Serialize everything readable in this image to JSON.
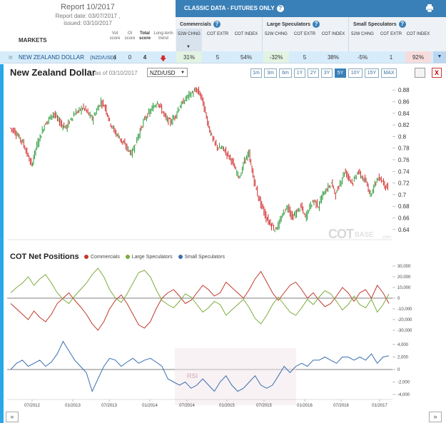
{
  "report": {
    "title": "Report 10/2017",
    "date": "Report date: 03/07/2017 ,",
    "issued": "issued: 03/10/2017",
    "markets_label": "MARKETS",
    "cols": {
      "vol": "Vol score",
      "oi": "OI score",
      "total": "Total score",
      "trend": "Long-term trend"
    }
  },
  "classic": {
    "title": "CLASSIC DATA - FUTURES ONLY",
    "groups": [
      "Commercials",
      "Large Speculators",
      "Small Speculators"
    ],
    "col_52w": "52W CHNG",
    "col_extr": "COT EXTR",
    "col_index": "COT INDEX"
  },
  "market_row": {
    "name": "NEW ZEALAND DOLLAR",
    "symbol": "(NZD/USD)",
    "vol": "4",
    "oi": "0",
    "total": "4",
    "comm_52w": "31%",
    "comm_extr": "5",
    "comm_index": "54%",
    "lspec_52w": "-32%",
    "lspec_extr": "5",
    "lspec_index": "38%",
    "sspec_52w": "-5%",
    "sspec_extr": "1",
    "sspec_index": "92%"
  },
  "chart": {
    "title": "New Zealand Dollar",
    "as_of": "as of 03/10/2017",
    "pair": "NZD/USD",
    "zoom": [
      "1m",
      "3m",
      "6m",
      "1Y",
      "2Y",
      "3Y",
      "5Y",
      "10Y",
      "15Y",
      "MAX"
    ],
    "zoom_active": "5Y",
    "close_label": "X",
    "cot_title": "COT Net Positions",
    "legend": [
      "Commercials",
      "Large Speculators",
      "Small Speculators"
    ],
    "nav_left": "«",
    "nav_right": "»",
    "watermark_cot": "COT",
    "watermark_base": "BASE",
    "watermark_com": ".com",
    "rsi_label": "RSI"
  },
  "colors": {
    "accent": "#3a80b8",
    "positive": "#2a9a3a",
    "negative": "#d02b2b",
    "commercials": "#c0392b",
    "large_spec": "#7dab3c",
    "small_spec": "#3a6fb0"
  },
  "chart_data": [
    {
      "type": "line",
      "series": [
        {
          "values": [
            0.815,
            0.81,
            0.8,
            0.79,
            0.77,
            0.75,
            0.78,
            0.8,
            0.82,
            0.83,
            0.84,
            0.83,
            0.82,
            0.815,
            0.83,
            0.84,
            0.845,
            0.85,
            0.84,
            0.83,
            0.845,
            0.86,
            0.85,
            0.825,
            0.81,
            0.8,
            0.79,
            0.78,
            0.77,
            0.79,
            0.81,
            0.83,
            0.84,
            0.85,
            0.86,
            0.845,
            0.83,
            0.825,
            0.835,
            0.85,
            0.86,
            0.87,
            0.875,
            0.88,
            0.87,
            0.84,
            0.81,
            0.79,
            0.78,
            0.78,
            0.77,
            0.76,
            0.74,
            0.73,
            0.76,
            0.77,
            0.73,
            0.7,
            0.68,
            0.66,
            0.65,
            0.64,
            0.65,
            0.67,
            0.68,
            0.66,
            0.67,
            0.68,
            0.66,
            0.68,
            0.69,
            0.68,
            0.7,
            0.71,
            0.72,
            0.7,
            0.72,
            0.74,
            0.73,
            0.72,
            0.74,
            0.73,
            0.72,
            0.7,
            0.72,
            0.73,
            0.72,
            0.71
          ]
        }
      ],
      "x_ticks": [
        "07/2012",
        "01/2013",
        "07/2013",
        "01/2014",
        "07/2014",
        "01/2015",
        "07/2015",
        "01/2016",
        "07/2016",
        "01/2017"
      ],
      "y_ticks": [
        "0.88",
        "0.86",
        "0.84",
        "0.82",
        "0.8",
        "0.78",
        "0.76",
        "0.74",
        "0.72",
        "0.7",
        "0.68",
        "0.66",
        "0.64"
      ],
      "ylim": [
        0.625,
        0.89
      ]
    },
    {
      "type": "line",
      "series": [
        {
          "name": "Commercials",
          "values": [
            -5000,
            -10000,
            -15000,
            -20000,
            -12000,
            -18000,
            -22000,
            -15000,
            -5000,
            0,
            5000,
            -2000,
            -8000,
            -15000,
            -24000,
            -30000,
            -22000,
            -10000,
            -2000,
            3000,
            -5000,
            -15000,
            -25000,
            -28000,
            -22000,
            -10000,
            0,
            5000,
            8000,
            2000,
            -5000,
            -2000,
            5000,
            12000,
            8000,
            2000,
            5000,
            15000,
            10000,
            5000,
            0,
            8000,
            18000,
            25000,
            15000,
            5000,
            -2000,
            5000,
            12000,
            15000,
            8000,
            0,
            5000,
            -2000,
            -8000,
            -5000,
            2000,
            10000,
            5000,
            -3000,
            5000,
            8000,
            0,
            12000,
            5000,
            -5000
          ]
        },
        {
          "name": "Large Speculators",
          "values": [
            5000,
            10000,
            14000,
            20000,
            12000,
            18000,
            22000,
            14000,
            5000,
            -1000,
            -5000,
            2000,
            8000,
            14000,
            22000,
            28000,
            20000,
            8000,
            0,
            -4000,
            4000,
            14000,
            24000,
            26000,
            20000,
            8000,
            -2000,
            -6000,
            -9000,
            -3000,
            4000,
            1000,
            -6000,
            -13000,
            -9000,
            -3000,
            -6000,
            -16000,
            -11000,
            -6000,
            -1000,
            -9000,
            -19000,
            -24000,
            -16000,
            -6000,
            1000,
            -6000,
            -13000,
            -16000,
            -9000,
            -1000,
            -6000,
            1000,
            7000,
            4000,
            -3000,
            -11000,
            -6000,
            2000,
            -6000,
            -9000,
            -1000,
            -13000,
            -6000,
            4000
          ]
        },
        {
          "name": "Small Speculators",
          "values": [
            0,
            1000,
            1500,
            500,
            1000,
            1500,
            500,
            1200,
            2500,
            4500,
            3000,
            1500,
            500,
            -500,
            -3500,
            -1500,
            500,
            1800,
            1500,
            500,
            1200,
            1800,
            1000,
            1500,
            1800,
            1200,
            500,
            -1500,
            -2000,
            -2500,
            -2000,
            -3000,
            -2500,
            -1500,
            -2500,
            -3500,
            -2000,
            -1000,
            -2500,
            -3500,
            -3000,
            -2000,
            -1000,
            -2500,
            -3000,
            -2500,
            -1000,
            500,
            -500,
            500,
            1000,
            500,
            1500,
            1500,
            2000,
            1500,
            1000,
            2000,
            2000,
            1500,
            2000,
            1500,
            2500,
            1000,
            2000,
            2200
          ]
        }
      ],
      "y_ticks": [
        "30,000",
        "20,000",
        "10,000",
        "0",
        "-10,000",
        "-20,000",
        "-30,000"
      ],
      "y_ticks_small": [
        "4,000",
        "2,000",
        "0",
        "-2,000",
        "-4,000"
      ],
      "ylim": [
        -30000,
        30000
      ],
      "ylim_small": [
        -4000,
        4000
      ]
    }
  ]
}
